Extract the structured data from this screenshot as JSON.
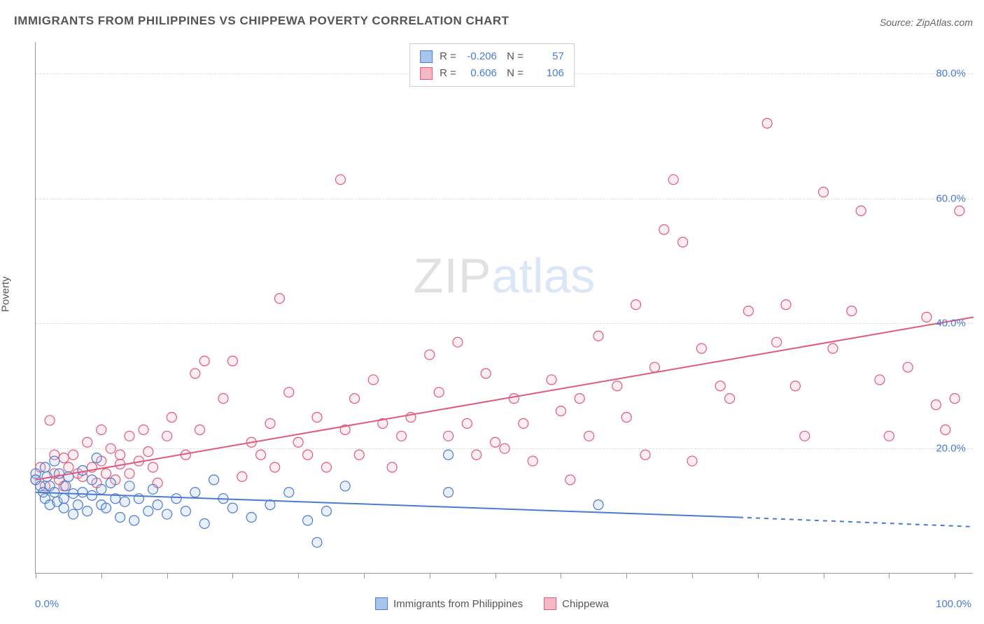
{
  "title": "IMMIGRANTS FROM PHILIPPINES VS CHIPPEWA POVERTY CORRELATION CHART",
  "source": "Source: ZipAtlas.com",
  "watermark": {
    "part1": "ZIP",
    "part2": "atlas"
  },
  "y_axis": {
    "title": "Poverty",
    "ticks": [
      20.0,
      40.0,
      60.0,
      80.0
    ],
    "tick_labels": [
      "20.0%",
      "40.0%",
      "60.0%",
      "80.0%"
    ]
  },
  "x_axis": {
    "min_label": "0.0%",
    "max_label": "100.0%",
    "tick_positions_pct": [
      0,
      7,
      14,
      21,
      28,
      35,
      42,
      49,
      56,
      63,
      70,
      77,
      84,
      91,
      98
    ]
  },
  "ylim": [
    0,
    85
  ],
  "xlim": [
    0,
    100
  ],
  "grid_color": "#dddddd",
  "axis_color": "#999999",
  "tick_label_color": "#4a7bd0",
  "background_color": "#ffffff",
  "series": [
    {
      "key": "philippines",
      "label": "Immigrants from Philippines",
      "color_fill": "#a8c5ec",
      "color_stroke": "#4a7bd0",
      "stats": {
        "R": "-0.206",
        "N": "57"
      },
      "marker_radius": 7,
      "trend": {
        "x1": 0,
        "y1": 13,
        "x2_solid": 75,
        "y2_solid": 9,
        "x2_dash": 100,
        "y2_dash": 7.5,
        "stroke_width": 2
      },
      "points": [
        [
          0,
          16
        ],
        [
          0,
          15
        ],
        [
          0.5,
          14
        ],
        [
          0.8,
          13
        ],
        [
          1,
          17
        ],
        [
          1,
          12
        ],
        [
          1.2,
          15.5
        ],
        [
          1.5,
          11
        ],
        [
          1.5,
          14
        ],
        [
          2,
          18
        ],
        [
          2,
          13
        ],
        [
          2.3,
          11.5
        ],
        [
          2.5,
          16
        ],
        [
          3,
          12
        ],
        [
          3,
          10.5
        ],
        [
          3.2,
          14
        ],
        [
          3.5,
          15.5
        ],
        [
          4,
          12.8
        ],
        [
          4,
          9.5
        ],
        [
          4.5,
          11
        ],
        [
          5,
          16.5
        ],
        [
          5,
          13
        ],
        [
          5.5,
          10
        ],
        [
          6,
          12.5
        ],
        [
          6,
          15
        ],
        [
          6.5,
          18.5
        ],
        [
          7,
          11
        ],
        [
          7,
          13.5
        ],
        [
          7.5,
          10.5
        ],
        [
          8,
          14.5
        ],
        [
          8.5,
          12
        ],
        [
          9,
          9
        ],
        [
          9.5,
          11.5
        ],
        [
          10,
          14
        ],
        [
          10.5,
          8.5
        ],
        [
          11,
          12
        ],
        [
          12,
          10
        ],
        [
          12.5,
          13.5
        ],
        [
          13,
          11
        ],
        [
          14,
          9.5
        ],
        [
          15,
          12
        ],
        [
          16,
          10
        ],
        [
          17,
          13
        ],
        [
          18,
          8
        ],
        [
          19,
          15
        ],
        [
          20,
          12
        ],
        [
          21,
          10.5
        ],
        [
          23,
          9
        ],
        [
          25,
          11
        ],
        [
          27,
          13
        ],
        [
          29,
          8.5
        ],
        [
          30,
          5
        ],
        [
          31,
          10
        ],
        [
          33,
          14
        ],
        [
          44,
          13
        ],
        [
          44,
          19
        ],
        [
          60,
          11
        ]
      ]
    },
    {
      "key": "chippewa",
      "label": "Chippewa",
      "color_fill": "#f5b8c5",
      "color_stroke": "#e05a7b",
      "stats": {
        "R": "0.606",
        "N": "106"
      },
      "marker_radius": 7,
      "trend": {
        "x1": 0,
        "y1": 15,
        "x2_solid": 100,
        "y2_solid": 41,
        "stroke_width": 2
      },
      "points": [
        [
          0,
          15
        ],
        [
          0.5,
          17
        ],
        [
          1,
          14
        ],
        [
          1.5,
          24.5
        ],
        [
          2,
          16
        ],
        [
          2,
          19
        ],
        [
          2.5,
          15
        ],
        [
          3,
          18.5
        ],
        [
          3,
          14
        ],
        [
          3.5,
          17
        ],
        [
          4,
          19
        ],
        [
          4.5,
          16
        ],
        [
          5,
          15.5
        ],
        [
          5.5,
          21
        ],
        [
          6,
          17
        ],
        [
          6.5,
          14.5
        ],
        [
          7,
          23
        ],
        [
          7,
          18
        ],
        [
          7.5,
          16
        ],
        [
          8,
          20
        ],
        [
          8.5,
          15
        ],
        [
          9,
          19
        ],
        [
          9,
          17.5
        ],
        [
          10,
          22
        ],
        [
          10,
          16
        ],
        [
          11,
          18
        ],
        [
          11.5,
          23
        ],
        [
          12,
          19.5
        ],
        [
          12.5,
          17
        ],
        [
          13,
          14.5
        ],
        [
          14,
          22
        ],
        [
          14.5,
          25
        ],
        [
          16,
          19
        ],
        [
          17,
          32
        ],
        [
          17.5,
          23
        ],
        [
          18,
          34
        ],
        [
          20,
          28
        ],
        [
          21,
          34
        ],
        [
          22,
          15.5
        ],
        [
          23,
          21
        ],
        [
          24,
          19
        ],
        [
          25,
          24
        ],
        [
          25.5,
          17
        ],
        [
          26,
          44
        ],
        [
          27,
          29
        ],
        [
          28,
          21
        ],
        [
          29,
          19
        ],
        [
          30,
          25
        ],
        [
          31,
          17
        ],
        [
          32.5,
          63
        ],
        [
          33,
          23
        ],
        [
          34,
          28
        ],
        [
          34.5,
          19
        ],
        [
          36,
          31
        ],
        [
          37,
          24
        ],
        [
          38,
          17
        ],
        [
          39,
          22
        ],
        [
          40,
          25
        ],
        [
          42,
          35
        ],
        [
          43,
          29
        ],
        [
          44,
          22
        ],
        [
          45,
          37
        ],
        [
          46,
          24
        ],
        [
          47,
          19
        ],
        [
          48,
          32
        ],
        [
          49,
          21
        ],
        [
          50,
          20
        ],
        [
          51,
          28
        ],
        [
          52,
          24
        ],
        [
          53,
          18
        ],
        [
          55,
          31
        ],
        [
          56,
          26
        ],
        [
          57,
          15
        ],
        [
          58,
          28
        ],
        [
          59,
          22
        ],
        [
          60,
          38
        ],
        [
          62,
          30
        ],
        [
          63,
          25
        ],
        [
          64,
          43
        ],
        [
          65,
          19
        ],
        [
          66,
          33
        ],
        [
          67,
          55
        ],
        [
          68,
          63
        ],
        [
          69,
          53
        ],
        [
          70,
          18
        ],
        [
          71,
          36
        ],
        [
          73,
          30
        ],
        [
          74,
          28
        ],
        [
          76,
          42
        ],
        [
          78,
          72
        ],
        [
          79,
          37
        ],
        [
          80,
          43
        ],
        [
          81,
          30
        ],
        [
          82,
          22
        ],
        [
          84,
          61
        ],
        [
          85,
          36
        ],
        [
          87,
          42
        ],
        [
          88,
          58
        ],
        [
          90,
          31
        ],
        [
          91,
          22
        ],
        [
          93,
          33
        ],
        [
          95,
          41
        ],
        [
          96,
          27
        ],
        [
          97,
          23
        ],
        [
          98,
          28
        ],
        [
          98.5,
          58
        ]
      ]
    }
  ],
  "legend_bottom": [
    {
      "label": "Immigrants from Philippines",
      "fill": "#a8c5ec",
      "stroke": "#4a7bd0"
    },
    {
      "label": "Chippewa",
      "fill": "#f5b8c5",
      "stroke": "#e05a7b"
    }
  ]
}
